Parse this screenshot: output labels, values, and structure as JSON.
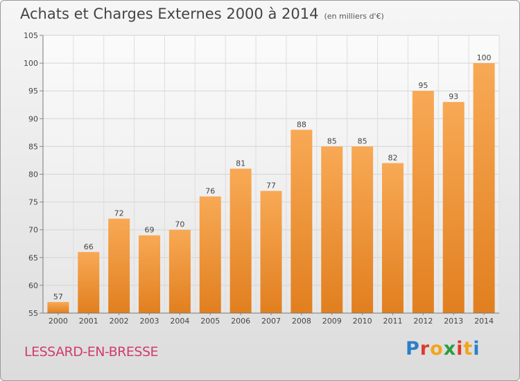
{
  "title": "Achats et Charges Externes 2000 à 2014",
  "subtitle": "(en milliers d'€)",
  "commune": "LESSARD-EN-BRESSE",
  "logo": {
    "letters": [
      "P",
      "r",
      "o",
      "x",
      "i",
      "t",
      "i"
    ],
    "colors": [
      "#2a7fc8",
      "#e0392b",
      "#f2a51c",
      "#2a9d3f",
      "#e0392b",
      "#f2a51c",
      "#2a7fc8"
    ]
  },
  "colors": {
    "bar_top": "#f8a955",
    "bar_bottom": "#e17f1f"
  },
  "chart_data": {
    "type": "bar",
    "categories": [
      "2000",
      "2001",
      "2002",
      "2003",
      "2004",
      "2005",
      "2006",
      "2007",
      "2008",
      "2009",
      "2010",
      "2011",
      "2012",
      "2013",
      "2014"
    ],
    "values": [
      57,
      66,
      72,
      69,
      70,
      76,
      81,
      77,
      88,
      85,
      85,
      82,
      95,
      93,
      100
    ],
    "title": "Achats et Charges Externes 2000 à 2014",
    "subtitle": "(en milliers d'€)",
    "xlabel": "",
    "ylabel": "",
    "ylim": [
      55,
      105
    ],
    "yticks": [
      55,
      60,
      65,
      70,
      75,
      80,
      85,
      90,
      95,
      100,
      105
    ],
    "grid": true
  }
}
